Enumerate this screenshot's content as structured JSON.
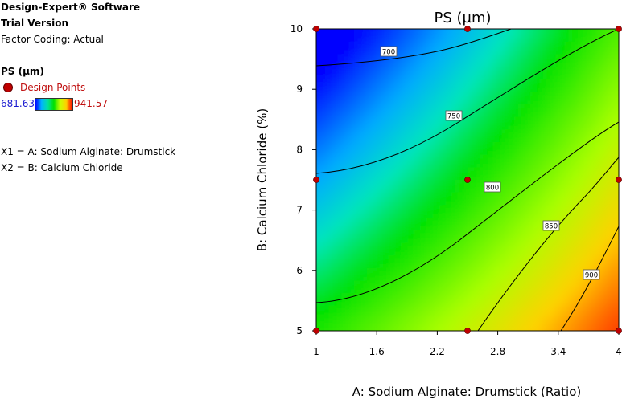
{
  "info": {
    "software": "Design-Expert® Software",
    "version": "Trial Version",
    "factor_coding": "Factor Coding: Actual",
    "response": "PS (µm)",
    "legend_label": "Design Points",
    "color_min": "681.63",
    "color_max": "941.57",
    "x1_def": "X1 = A: Sodium Alginate: Drumstick",
    "x2_def": "X2 = B: Calcium Chloride"
  },
  "colors": {
    "low": "#0000ff",
    "mid": "#00e000",
    "high": "#ff0000",
    "design_point": "#c00000"
  },
  "chart_data": {
    "type": "contour",
    "title": "PS (µm)",
    "xlabel": "A: Sodium Alginate: Drumstick (Ratio)",
    "ylabel": "B: Calcium Chloride (%)",
    "xlim": [
      1,
      4
    ],
    "ylim": [
      5,
      10
    ],
    "x_ticks": [
      "1",
      "1.6",
      "2.2",
      "2.8",
      "3.4",
      "4"
    ],
    "y_ticks": [
      "5",
      "6",
      "7",
      "8",
      "9",
      "10"
    ],
    "color_range": [
      681.63,
      941.57
    ],
    "contour_levels": [
      700,
      750,
      800,
      850,
      900
    ],
    "design_points": [
      {
        "x": 1,
        "y": 10
      },
      {
        "x": 2.5,
        "y": 10
      },
      {
        "x": 4,
        "y": 10
      },
      {
        "x": 1,
        "y": 7.5
      },
      {
        "x": 2.5,
        "y": 7.5
      },
      {
        "x": 4,
        "y": 7.5
      },
      {
        "x": 1,
        "y": 5
      },
      {
        "x": 2.5,
        "y": 5
      },
      {
        "x": 4,
        "y": 5
      }
    ]
  }
}
